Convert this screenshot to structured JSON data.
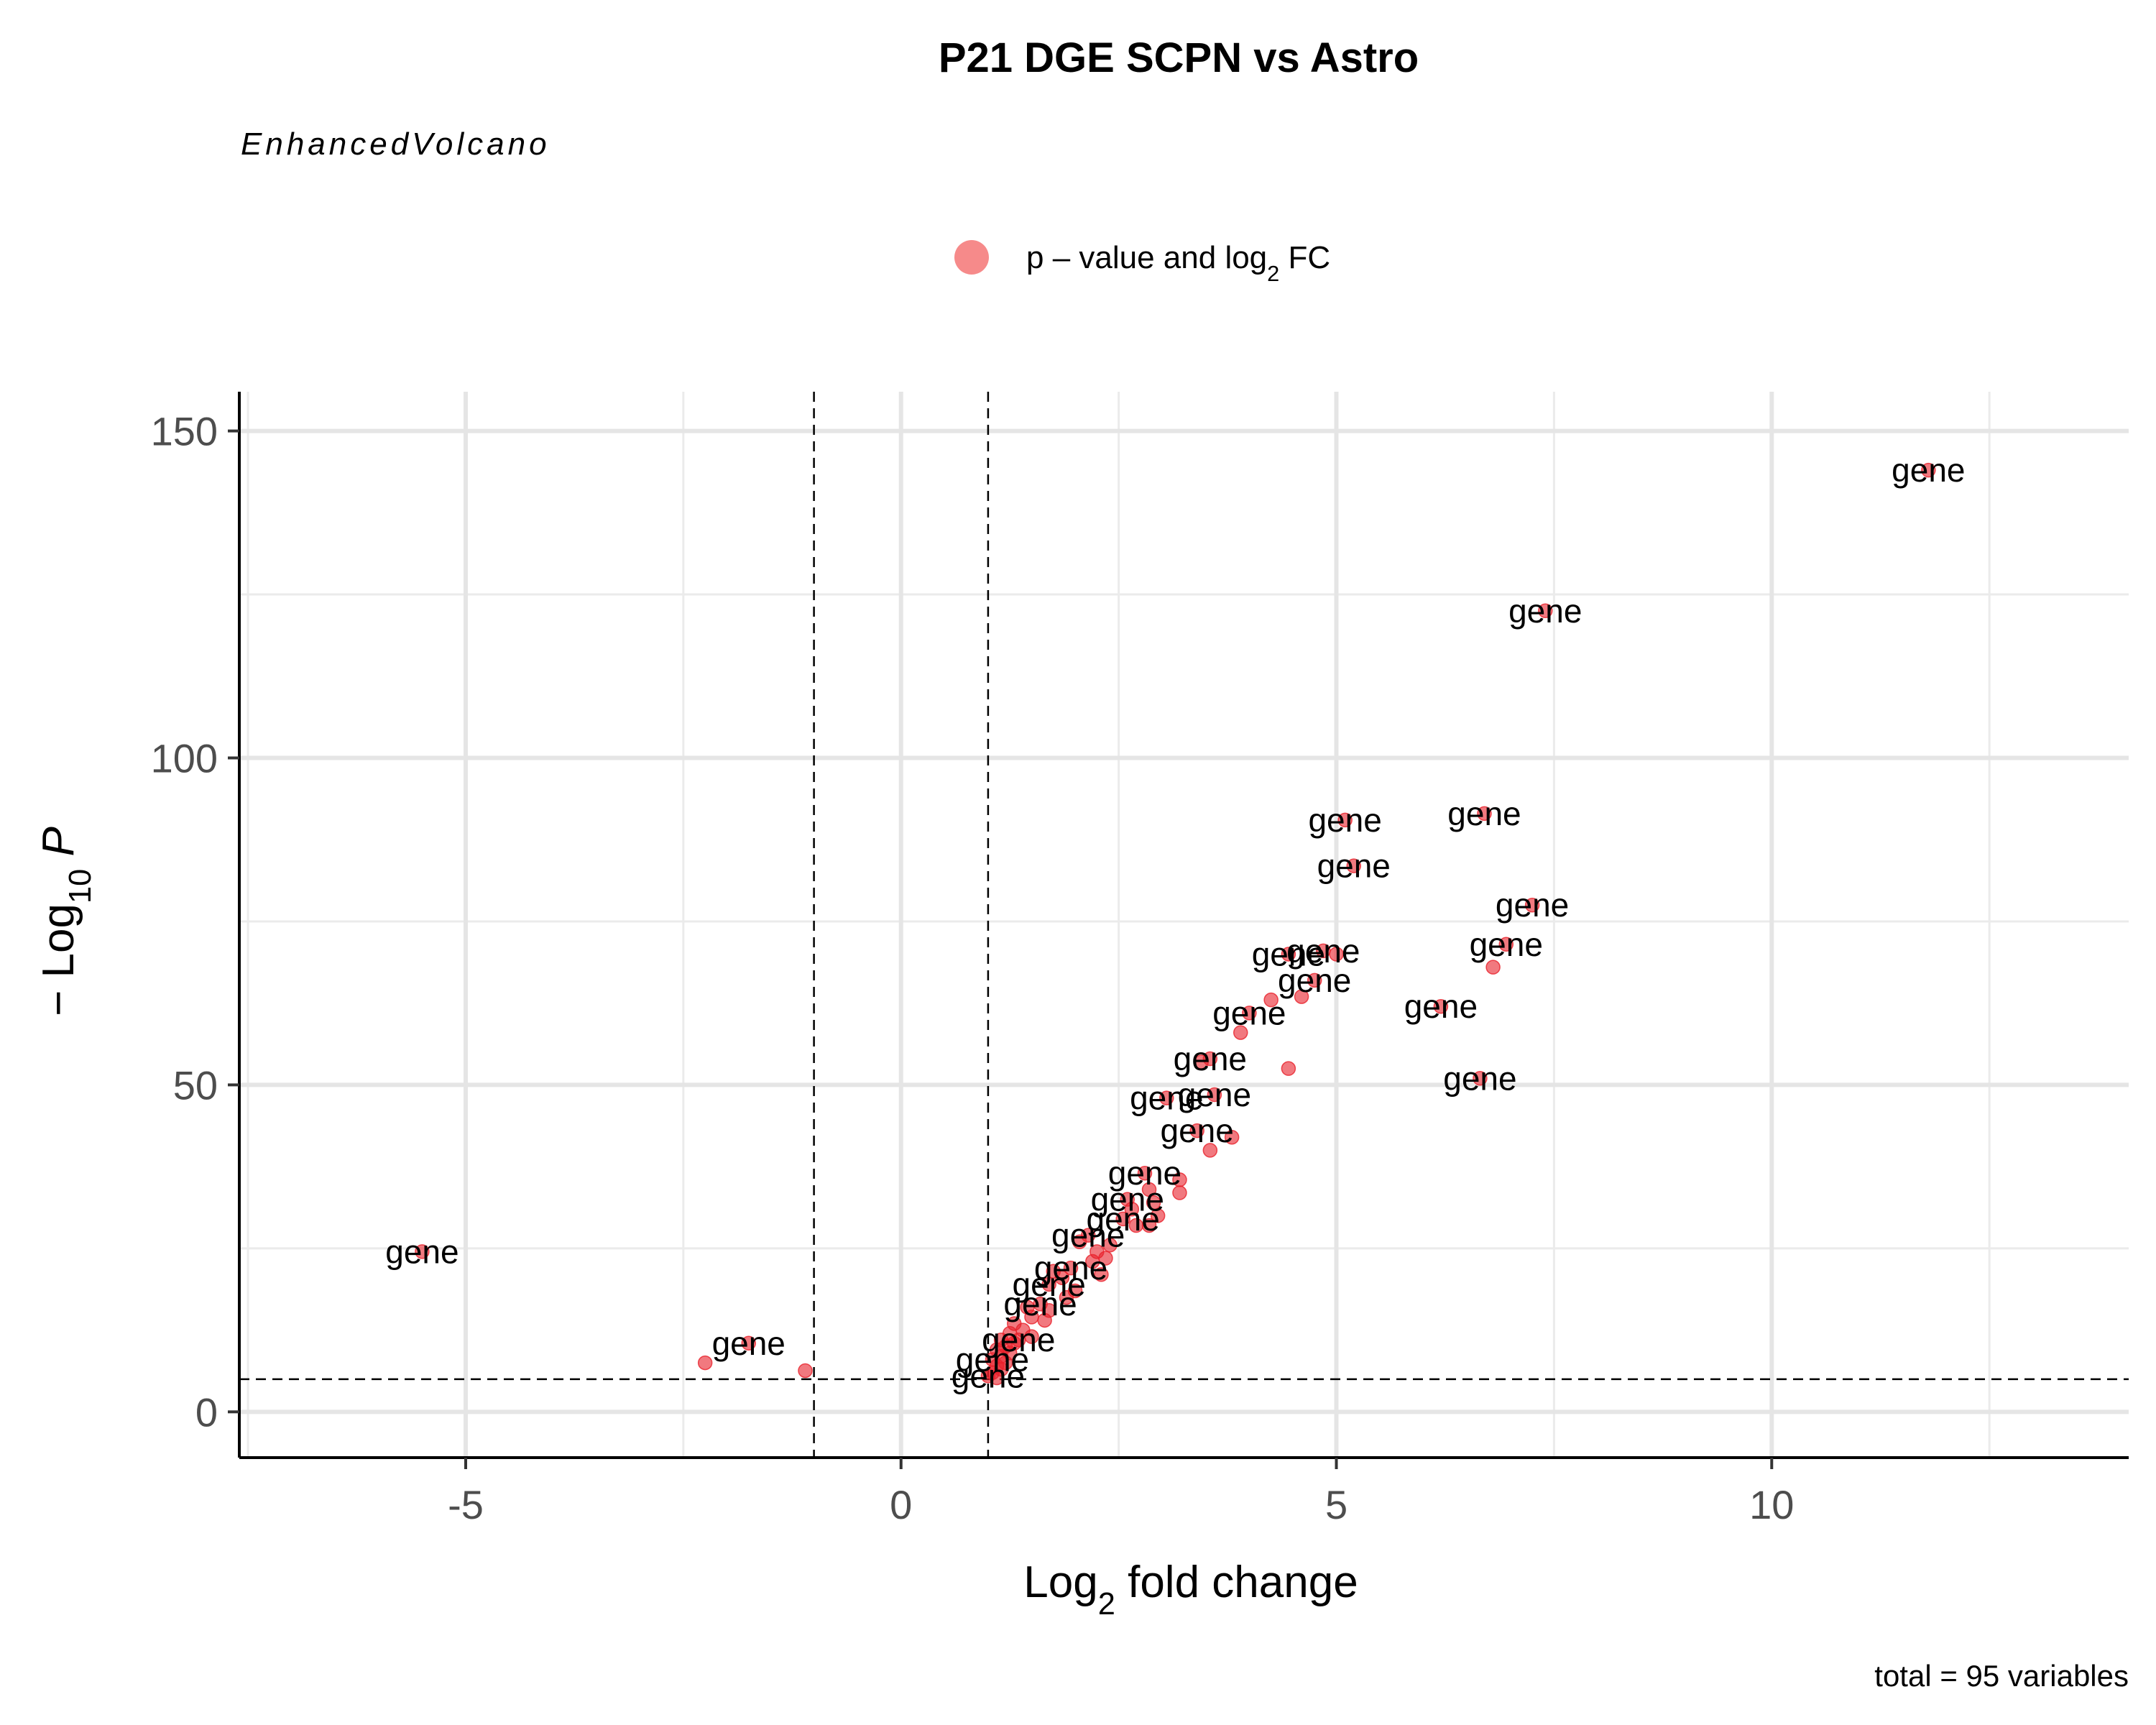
{
  "chart_data": {
    "type": "scatter",
    "title": "P21 DGE SCPN vs Astro",
    "subtitle": "EnhancedVolcano",
    "xlabel": {
      "base": "Log",
      "sub": "2",
      "rest": " fold change"
    },
    "ylabel": {
      "prefix": "− Log",
      "sub": "10",
      "rest": " P"
    },
    "legend": {
      "position": "top",
      "label": {
        "prefix": "p – value and log",
        "sub": "2",
        "rest": " FC"
      },
      "color": "#f03c3c"
    },
    "caption": "total = 95 variables",
    "xlim": [
      -7.6,
      14.1
    ],
    "ylim": [
      -7,
      156
    ],
    "xticks": [
      -5,
      0,
      5,
      10
    ],
    "xtick_labels": [
      "-5",
      "0",
      "5",
      "10"
    ],
    "yticks": [
      0,
      50,
      100,
      150
    ],
    "ytick_labels": [
      "0",
      "50",
      "100",
      "150"
    ],
    "grid": true,
    "thresholds": {
      "fc_cutoff": [
        -1,
        1
      ],
      "p_cutoff": 5
    },
    "point_color": "#e8202a",
    "point_label": "gene",
    "points": [
      [
        11.8,
        144,
        1
      ],
      [
        7.4,
        122.5,
        1
      ],
      [
        6.7,
        91.5,
        1
      ],
      [
        5.1,
        90.5,
        1
      ],
      [
        5.2,
        83.5,
        1
      ],
      [
        7.25,
        77.5,
        1
      ],
      [
        6.95,
        71.5,
        1
      ],
      [
        6.8,
        68,
        0
      ],
      [
        4.85,
        70.5,
        1
      ],
      [
        5.0,
        70,
        0
      ],
      [
        4.45,
        70,
        1
      ],
      [
        4.75,
        66,
        1
      ],
      [
        4.6,
        63.5,
        0
      ],
      [
        4.25,
        63,
        0
      ],
      [
        6.2,
        62,
        1
      ],
      [
        4.0,
        61,
        1
      ],
      [
        3.9,
        58,
        0
      ],
      [
        4.45,
        52.5,
        0
      ],
      [
        6.65,
        51,
        1
      ],
      [
        3.55,
        54,
        1
      ],
      [
        3.45,
        53.5,
        0
      ],
      [
        3.6,
        48.5,
        1
      ],
      [
        3.05,
        48,
        1
      ],
      [
        3.4,
        43,
        1
      ],
      [
        3.8,
        42,
        0
      ],
      [
        3.55,
        40,
        0
      ],
      [
        2.8,
        36.5,
        1
      ],
      [
        3.2,
        35.5,
        0
      ],
      [
        2.85,
        34,
        0
      ],
      [
        3.2,
        33.5,
        0
      ],
      [
        2.6,
        32.5,
        1
      ],
      [
        2.9,
        32,
        0
      ],
      [
        2.65,
        31,
        0
      ],
      [
        2.95,
        30,
        0
      ],
      [
        2.55,
        29.5,
        1
      ],
      [
        2.85,
        28.5,
        0
      ],
      [
        2.7,
        28.5,
        0
      ],
      [
        2.15,
        27,
        1
      ],
      [
        2.05,
        26,
        0
      ],
      [
        2.4,
        25.5,
        0
      ],
      [
        2.25,
        24.5,
        0
      ],
      [
        2.35,
        23.5,
        0
      ],
      [
        2.2,
        23,
        0
      ],
      [
        1.95,
        22,
        1
      ],
      [
        1.75,
        21.5,
        0
      ],
      [
        2.3,
        21,
        0
      ],
      [
        1.85,
        20.5,
        0
      ],
      [
        1.7,
        19.5,
        1
      ],
      [
        2.0,
        18.5,
        0
      ],
      [
        1.9,
        17.5,
        0
      ],
      [
        1.6,
        16.5,
        1
      ],
      [
        1.45,
        16,
        0
      ],
      [
        1.7,
        15.5,
        0
      ],
      [
        1.5,
        14.5,
        0
      ],
      [
        1.65,
        14,
        0
      ],
      [
        1.3,
        13.5,
        0
      ],
      [
        1.4,
        12.5,
        0
      ],
      [
        1.25,
        12,
        0
      ],
      [
        1.5,
        11.5,
        0
      ],
      [
        1.35,
        11,
        1
      ],
      [
        1.15,
        11,
        0
      ],
      [
        1.3,
        10.5,
        0
      ],
      [
        1.2,
        10,
        0
      ],
      [
        1.1,
        9.5,
        0
      ],
      [
        1.25,
        9,
        0
      ],
      [
        1.15,
        8.5,
        0
      ],
      [
        1.05,
        8,
        1
      ],
      [
        1.2,
        7.5,
        0
      ],
      [
        1.1,
        7,
        0
      ],
      [
        1.15,
        6.5,
        0
      ],
      [
        1.05,
        6,
        0
      ],
      [
        1.0,
        5.5,
        1
      ],
      [
        1.1,
        5.2,
        0
      ],
      [
        -5.5,
        24.5,
        1
      ],
      [
        -1.75,
        10.5,
        1
      ],
      [
        -2.25,
        7.5,
        0
      ],
      [
        -1.1,
        6.3,
        0
      ]
    ]
  }
}
